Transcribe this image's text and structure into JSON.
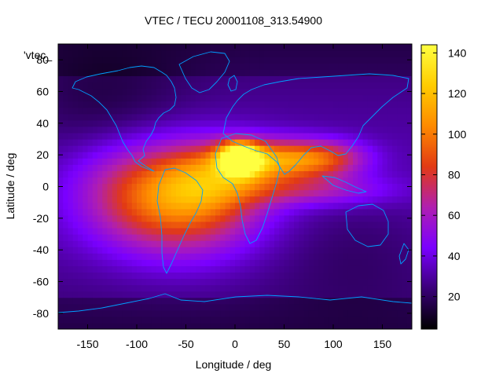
{
  "title": "VTEC / TECU 20001108_313.54900",
  "key_label": "'vtec_",
  "axes": {
    "xlabel": "Longitude / deg",
    "ylabel": "Latitude / deg",
    "xlim": [
      -180,
      180
    ],
    "ylim": [
      -90,
      90
    ],
    "xticks": [
      "-150",
      "-100",
      "-50",
      "0",
      "50",
      "100",
      "150"
    ],
    "xtick_values": [
      -150,
      -100,
      -50,
      0,
      50,
      100,
      150
    ],
    "yticks": [
      "80",
      "60",
      "40",
      "20",
      "0",
      "-20",
      "-40",
      "-60",
      "-80"
    ],
    "ytick_values": [
      80,
      60,
      40,
      20,
      0,
      -20,
      -40,
      -60,
      -80
    ]
  },
  "colorbar": {
    "min": 4,
    "max": 144,
    "ticks": [
      "20",
      "40",
      "60",
      "80",
      "100",
      "120",
      "140"
    ],
    "tick_values": [
      20,
      40,
      60,
      80,
      100,
      120,
      140
    ],
    "palette": [
      "#000000",
      "#3a0078",
      "#7a00ff",
      "#b01fb0",
      "#e23a14",
      "#fe8a00",
      "#ffcc00",
      "#ffff40"
    ]
  },
  "coastline_color": "#00a0ff",
  "chart_data": {
    "type": "heatmap",
    "title": "VTEC / TECU 20001108_313.54900",
    "xlabel": "Longitude / deg",
    "ylabel": "Latitude / deg",
    "x_range": [
      -180,
      180
    ],
    "y_range": [
      -90,
      90
    ],
    "z_range": [
      4,
      144
    ],
    "features": [
      {
        "lon": 5,
        "lat": 18,
        "sx": 14,
        "sy": 7,
        "amp": 102
      },
      {
        "lon": 40,
        "lat": 17,
        "sx": 40,
        "sy": 9,
        "amp": 62
      },
      {
        "lon": 95,
        "lat": 18,
        "sx": 30,
        "sy": 8,
        "amp": 38
      },
      {
        "lon": -55,
        "lat": -8,
        "sx": 55,
        "sy": 24,
        "amp": 70
      },
      {
        "lon": -20,
        "lat": 5,
        "sx": 40,
        "sy": 14,
        "amp": 30
      },
      {
        "lon": 80,
        "lat": -2,
        "sx": 55,
        "sy": 7,
        "amp": 30
      },
      {
        "lon": -120,
        "lat": 0,
        "sx": 40,
        "sy": 22,
        "amp": 14
      },
      {
        "lon": 120,
        "lat": -40,
        "sx": 60,
        "sy": 25,
        "amp": -8
      },
      {
        "lon": -130,
        "lat": 50,
        "sx": 60,
        "sy": 25,
        "amp": -12
      }
    ],
    "background": 32
  }
}
